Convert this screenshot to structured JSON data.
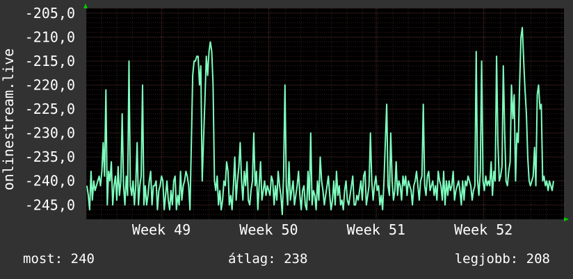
{
  "colors": {
    "background": "#323232",
    "plot_background": "#000000",
    "grid_minor": "#3a2323",
    "grid_major": "#5a3030",
    "line": "#7fffbf",
    "axis_arrow": "#00cc00",
    "text": "#ffffff"
  },
  "chart_data": {
    "type": "line",
    "ylabel": "onlinestream.live",
    "yticks": [
      "-205,0",
      "-210,0",
      "-215,0",
      "-220,0",
      "-225,0",
      "-230,0",
      "-235,0",
      "-240,0",
      "-245,0"
    ],
    "ytick_values": [
      -205,
      -210,
      -215,
      -220,
      -225,
      -230,
      -235,
      -240,
      -245
    ],
    "ylim": [
      -248,
      -204
    ],
    "xticks": [
      "Week 49",
      "Week 50",
      "Week 51",
      "Week 52"
    ],
    "xtick_positions": [
      1,
      2,
      3,
      4
    ],
    "xlim": [
      0.3,
      4.75
    ],
    "grid": true,
    "series": [
      {
        "values": [
          -241,
          -243,
          -246,
          -238,
          -244,
          -240,
          -242,
          -241,
          -240,
          -239,
          -241,
          -238,
          -232,
          -239,
          -221,
          -245,
          -238,
          -240,
          -236,
          -245,
          -241,
          -239,
          -244,
          -237,
          -243,
          -240,
          -226,
          -241,
          -245,
          -239,
          -243,
          -215,
          -241,
          -243,
          -240,
          -245,
          -241,
          -232,
          -245,
          -241,
          -239,
          -220,
          -245,
          -241,
          -245,
          -243,
          -240,
          -238,
          -245,
          -241,
          -241,
          -240,
          -246,
          -242,
          -241,
          -239,
          -240,
          -246,
          -243,
          -240,
          -244,
          -246,
          -242,
          -245,
          -240,
          -239,
          -246,
          -243,
          -245,
          -238,
          -244,
          -241,
          -240,
          -238,
          -239,
          -241,
          -246,
          -232,
          -218,
          -215,
          -215,
          -214,
          -214,
          -220,
          -216,
          -240,
          -231,
          -223,
          -214,
          -218,
          -213,
          -211,
          -213,
          -220,
          -240,
          -242,
          -239,
          -245,
          -242,
          -246,
          -244,
          -240,
          -241,
          -236,
          -238,
          -245,
          -243,
          -246,
          -241,
          -235,
          -244,
          -240,
          -237,
          -232,
          -240,
          -244,
          -238,
          -241,
          -236,
          -244,
          -245,
          -242,
          -240,
          -230,
          -241,
          -238,
          -246,
          -241,
          -236,
          -244,
          -242,
          -240,
          -243,
          -241,
          -242,
          -243,
          -239,
          -240,
          -245,
          -241,
          -244,
          -238,
          -241,
          -243,
          -247,
          -239,
          -220,
          -241,
          -245,
          -236,
          -244,
          -242,
          -240,
          -245,
          -243,
          -241,
          -238,
          -243,
          -246,
          -242,
          -241,
          -245,
          -246,
          -238,
          -244,
          -230,
          -245,
          -242,
          -243,
          -246,
          -240,
          -244,
          -235,
          -240,
          -242,
          -245,
          -243,
          -241,
          -239,
          -243,
          -246,
          -244,
          -240,
          -245,
          -238,
          -243,
          -241,
          -245,
          -244,
          -246,
          -242,
          -240,
          -244,
          -245,
          -243,
          -241,
          -239,
          -245,
          -245,
          -243,
          -244,
          -242,
          -240,
          -244,
          -239,
          -238,
          -245,
          -243,
          -241,
          -230,
          -240,
          -244,
          -241,
          -239,
          -242,
          -241,
          -245,
          -243,
          -246,
          -240,
          -232,
          -224,
          -241,
          -243,
          -230,
          -240,
          -244,
          -242,
          -236,
          -243,
          -240,
          -241,
          -244,
          -239,
          -241,
          -239,
          -243,
          -240,
          -241,
          -242,
          -245,
          -241,
          -240,
          -238,
          -241,
          -244,
          -240,
          -239,
          -224,
          -241,
          -243,
          -239,
          -238,
          -242,
          -241,
          -240,
          -243,
          -241,
          -244,
          -238,
          -240,
          -241,
          -244,
          -238,
          -245,
          -240,
          -243,
          -240,
          -242,
          -241,
          -238,
          -244,
          -242,
          -241,
          -240,
          -242,
          -245,
          -240,
          -244,
          -240,
          -241,
          -239,
          -240,
          -241,
          -244,
          -242,
          -241,
          -213,
          -240,
          -243,
          -238,
          -215,
          -240,
          -242,
          -239,
          -241,
          -240,
          -241,
          -236,
          -243,
          -238,
          -240,
          -214,
          -232,
          -240,
          -239,
          -237,
          -216,
          -230,
          -240,
          -241,
          -238,
          -236,
          -220,
          -227,
          -222,
          -240,
          -230,
          -232,
          -220,
          -210,
          -208,
          -215,
          -221,
          -226,
          -235,
          -240,
          -241,
          -240,
          -239,
          -233,
          -241,
          -222,
          -220,
          -225,
          -224,
          -240,
          -239,
          -241,
          -240,
          -242,
          -240,
          -241,
          -242,
          -240
        ]
      }
    ]
  },
  "footer": {
    "current": "most: 240",
    "average": "átlag: 238",
    "best": "legjobb: 208"
  }
}
